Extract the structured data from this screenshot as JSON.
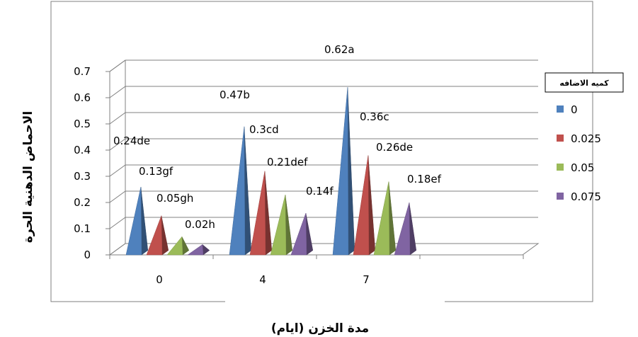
{
  "chart_data": {
    "type": "bar",
    "categories": [
      "0",
      "4",
      "7"
    ],
    "series": [
      {
        "name": "0",
        "color": "#4f81bd",
        "values": [
          0.24,
          0.47,
          0.62
        ],
        "labels": [
          "0.24de",
          "0.47b",
          "0.62a"
        ]
      },
      {
        "name": "0.025",
        "color": "#c0504d",
        "values": [
          0.13,
          0.3,
          0.36
        ],
        "labels": [
          "0.13gf",
          "0.3cd",
          "0.36c"
        ]
      },
      {
        "name": "0.05",
        "color": "#9bbb59",
        "values": [
          0.05,
          0.21,
          0.26
        ],
        "labels": [
          "0.05gh",
          "0.21def",
          "0.26de"
        ]
      },
      {
        "name": "0.075",
        "color": "#8064a2",
        "values": [
          0.02,
          0.14,
          0.18
        ],
        "labels": [
          "0.02h",
          "0.14f",
          "0.18ef"
        ]
      }
    ],
    "ylim": [
      0,
      0.7
    ],
    "yticks": [
      "0",
      "0.1",
      "0.2",
      "0.3",
      "0.4",
      "0.5",
      "0.6",
      "0.7"
    ],
    "xlabel": "مدة الخزن (ايام)",
    "ylabel": "الاحماض الدهنية الحرة",
    "legend_title": "كميه الاضافه",
    "legend_position": "right",
    "grid": true,
    "bar_shape": "pyramid-3d"
  }
}
